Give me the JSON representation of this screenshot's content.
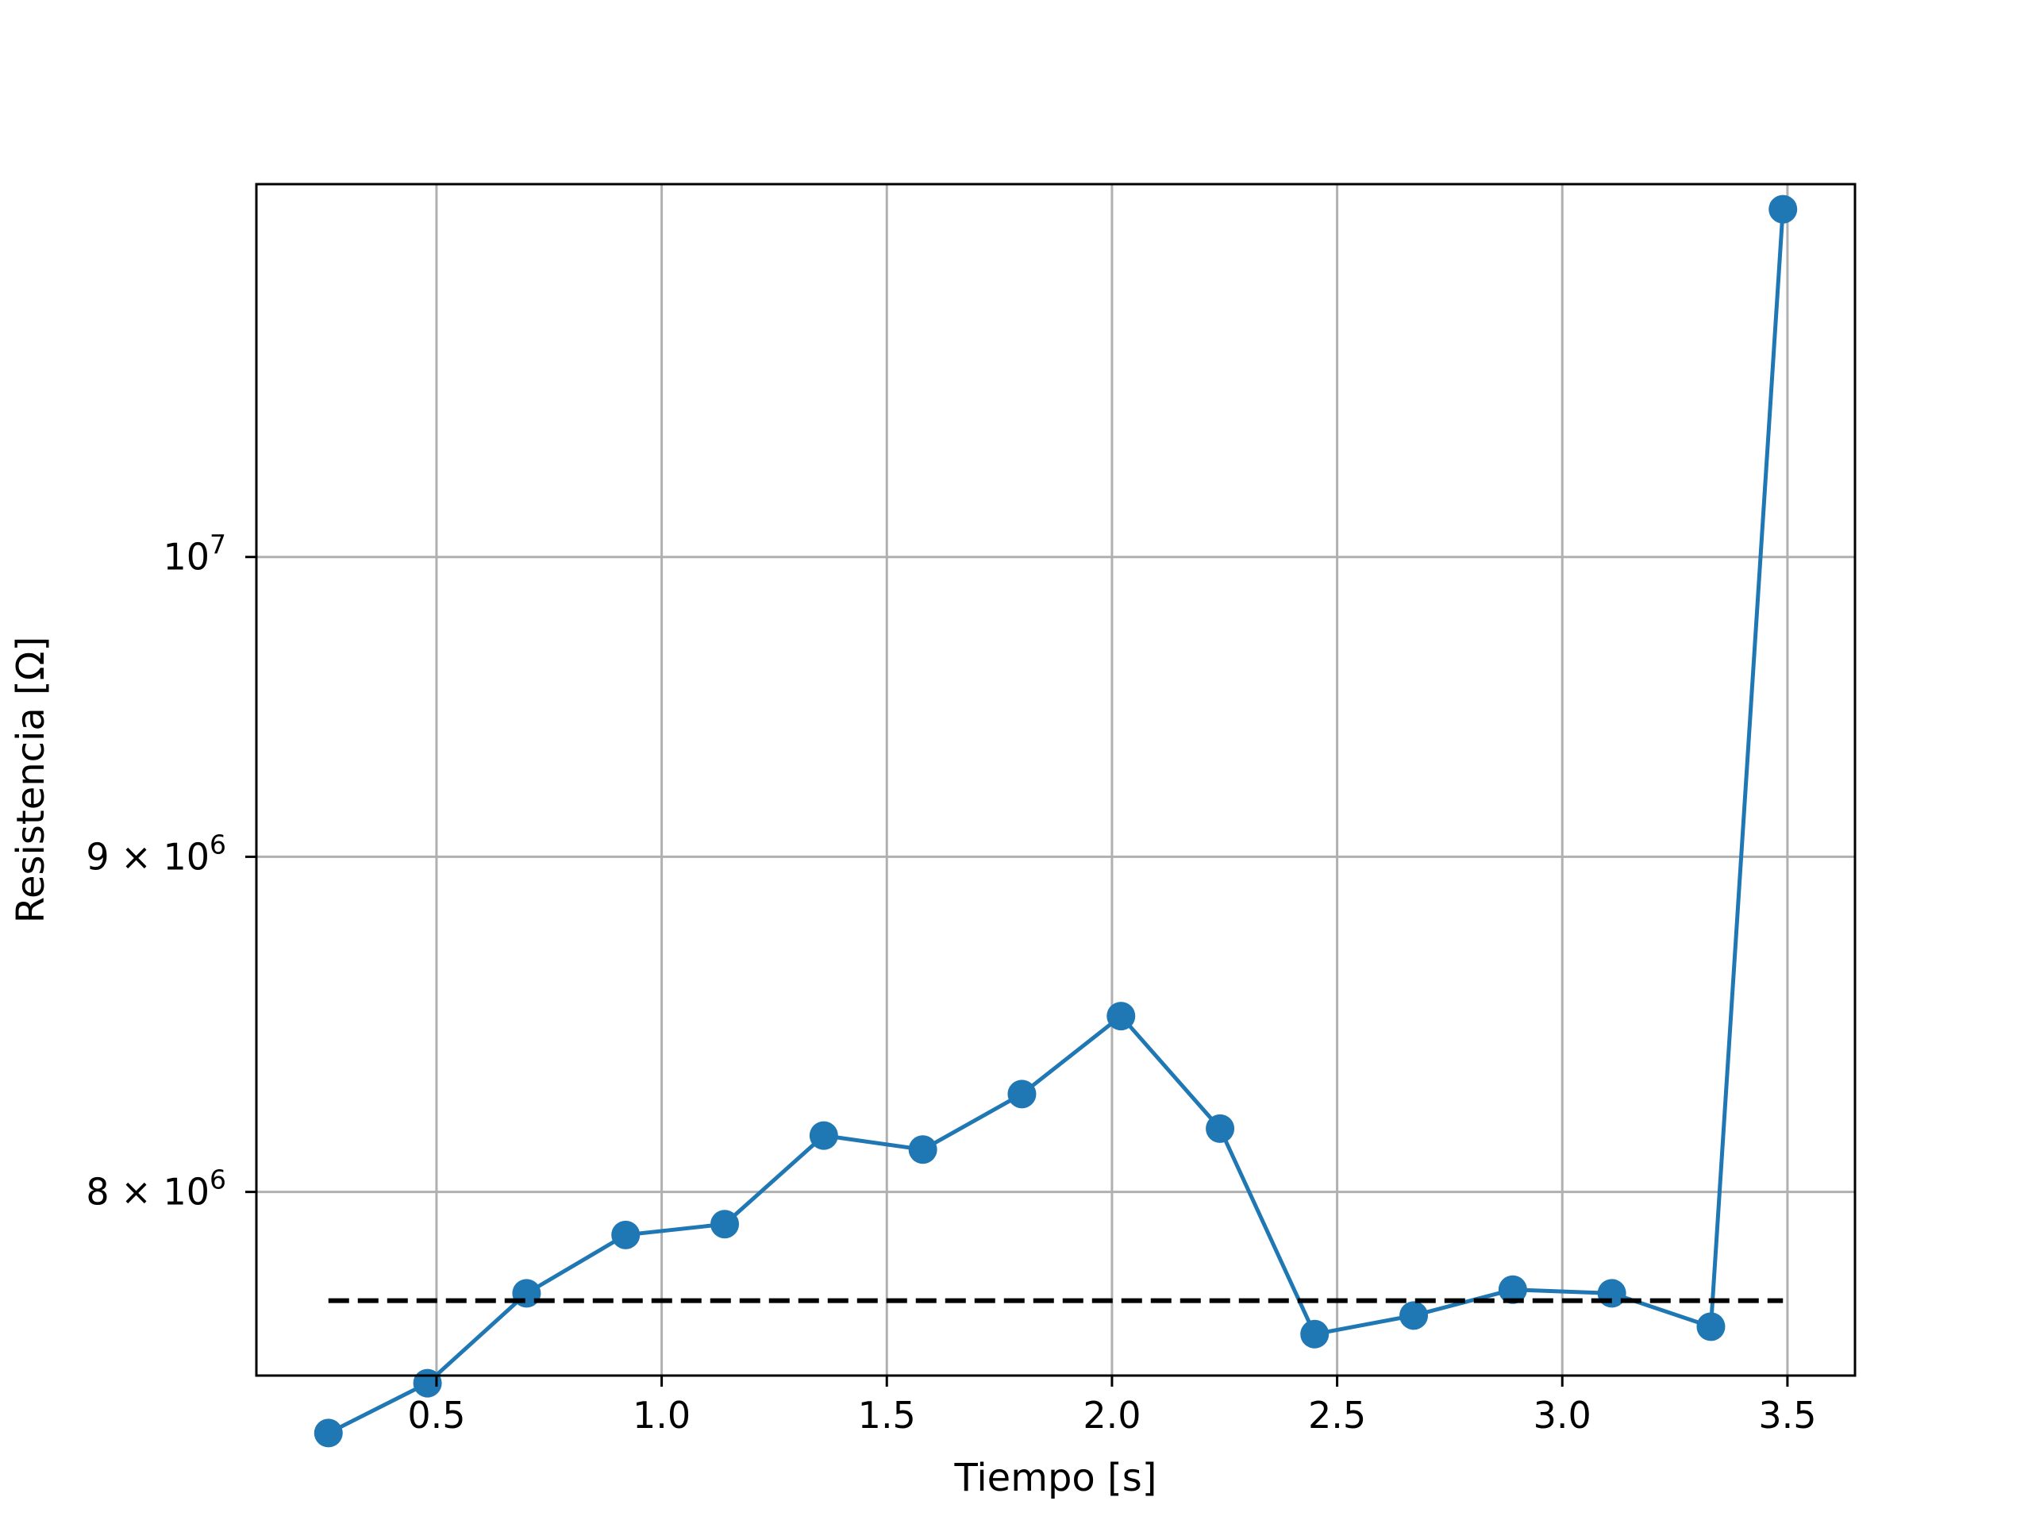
{
  "chart_data": {
    "type": "line",
    "title": "",
    "xlabel": "Tiempo [s]",
    "ylabel": "Resistencia [Ω]",
    "xlim": [
      0.1,
      3.65
    ],
    "ylim": [
      7500000,
      11400000
    ],
    "yscale": "log",
    "grid": true,
    "xticks": [
      {
        "value": 0.5,
        "label": "0.5"
      },
      {
        "value": 1.0,
        "label": "1.0"
      },
      {
        "value": 1.5,
        "label": "1.5"
      },
      {
        "value": 2.0,
        "label": "2.0"
      },
      {
        "value": 2.5,
        "label": "2.5"
      },
      {
        "value": 3.0,
        "label": "3.0"
      },
      {
        "value": 3.5,
        "label": "3.5"
      }
    ],
    "yticks": [
      {
        "value": 8000000,
        "mantissa": "8 × 10",
        "exp": "6"
      },
      {
        "value": 9000000,
        "mantissa": "9 × 10",
        "exp": "6"
      },
      {
        "value": 10000000,
        "mantissa": "10",
        "exp": "7"
      }
    ],
    "series": [
      {
        "color": "#1f77b4",
        "style": "solid",
        "marker": "circle",
        "x": [
          0.26,
          0.48,
          0.7,
          0.92,
          1.14,
          1.36,
          1.58,
          1.8,
          2.02,
          2.24,
          2.45,
          2.67,
          2.89,
          3.11,
          3.33,
          3.49
        ],
        "y": [
          7350000,
          7480000,
          7720000,
          7880000,
          7910000,
          8160000,
          8120000,
          8280000,
          8510000,
          8180000,
          7610000,
          7660000,
          7730000,
          7720000,
          7630000,
          11300000
        ]
      },
      {
        "color": "#000000",
        "style": "dashed",
        "marker": "none",
        "x": [
          0.26,
          3.49
        ],
        "y": [
          7700000,
          7700000
        ]
      }
    ]
  }
}
